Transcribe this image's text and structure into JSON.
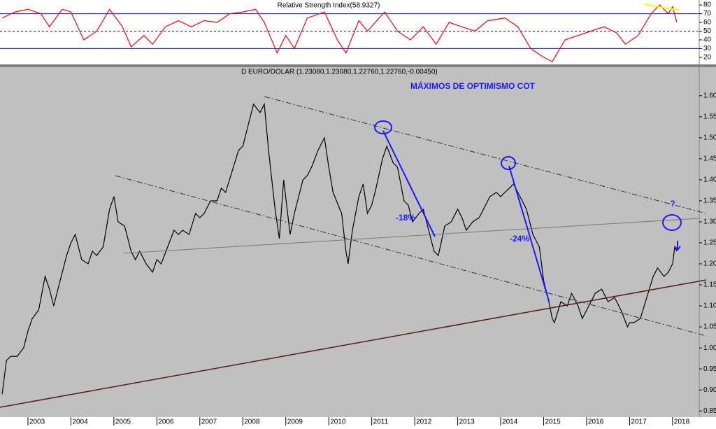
{
  "chart_data": [
    {
      "type": "line",
      "title": "Relative Strength Index(58.9327)",
      "xlim": [
        2002.35,
        2018.62
      ],
      "ylim": [
        12.7,
        85.7
      ],
      "yticks": [
        20,
        30,
        40,
        50,
        60,
        70,
        80
      ],
      "levels": [
        70,
        50,
        30
      ],
      "series": [
        {
          "name": "RSI",
          "color": "#ff0000",
          "x": [
            2002.4,
            2002.7,
            2003.0,
            2003.3,
            2003.5,
            2003.8,
            2004.0,
            2004.3,
            2004.6,
            2004.9,
            2005.2,
            2005.4,
            2005.7,
            2005.9,
            2006.2,
            2006.5,
            2006.8,
            2007.1,
            2007.4,
            2007.7,
            2008.0,
            2008.3,
            2008.5,
            2008.8,
            2009.0,
            2009.2,
            2009.5,
            2009.9,
            2010.2,
            2010.4,
            2010.7,
            2010.9,
            2011.3,
            2011.6,
            2011.9,
            2012.2,
            2012.5,
            2012.8,
            2013.1,
            2013.4,
            2013.7,
            2014.1,
            2014.4,
            2014.7,
            2015.0,
            2015.2,
            2015.5,
            2015.8,
            2016.1,
            2016.4,
            2016.7,
            2016.9,
            2017.2,
            2017.5,
            2017.7,
            2017.9,
            2018.0,
            2018.1
          ],
          "values": [
            65,
            72,
            75,
            70,
            55,
            75,
            72,
            40,
            50,
            75,
            55,
            32,
            45,
            35,
            55,
            62,
            55,
            62,
            60,
            70,
            72,
            75,
            60,
            25,
            45,
            30,
            65,
            72,
            40,
            25,
            62,
            50,
            72,
            50,
            40,
            55,
            35,
            60,
            55,
            50,
            62,
            65,
            55,
            30,
            20,
            15,
            40,
            45,
            50,
            55,
            48,
            35,
            45,
            70,
            80,
            70,
            78,
            60
          ]
        }
      ]
    },
    {
      "type": "line",
      "title": "D EURO/DOLAR (1.23080,1.23080,1.22760,1.22760,-0.00450)",
      "annotations": [
        "MÁXIMOS DE OPTIMISMO COT",
        "-18%",
        "-24%",
        "?"
      ],
      "xlim": [
        2002.35,
        2018.62
      ],
      "ylim": [
        0.837,
        1.668
      ],
      "xticks": [
        2003,
        2004,
        2005,
        2006,
        2007,
        2008,
        2009,
        2010,
        2011,
        2012,
        2013,
        2014,
        2015,
        2016,
        2017,
        2018
      ],
      "yticks": [
        {
          "value": 0.85,
          "label": "0.85"
        },
        {
          "value": 0.9,
          "label": "0.90"
        },
        {
          "value": 0.95,
          "label": "0.95"
        },
        {
          "value": 1.0,
          "label": "1.00"
        },
        {
          "value": 1.05,
          "label": "1.05"
        },
        {
          "value": 1.1,
          "label": "1.10"
        },
        {
          "value": 1.15,
          "label": "1.15"
        },
        {
          "value": 1.2,
          "label": "1.20"
        },
        {
          "value": 1.25,
          "label": "1.25"
        },
        {
          "value": 1.3,
          "label": "1.30"
        },
        {
          "value": 1.35,
          "label": "1.35"
        },
        {
          "value": 1.4,
          "label": "1.40"
        },
        {
          "value": 1.45,
          "label": "1.45"
        },
        {
          "value": 1.5,
          "label": "1.50"
        },
        {
          "value": 1.55,
          "label": "1.55"
        },
        {
          "value": 1.6,
          "label": "1.60"
        }
      ],
      "series": [
        {
          "name": "EURO/DOLAR",
          "color": "#000000",
          "x": [
            2002.4,
            2002.5,
            2002.6,
            2002.75,
            2002.9,
            2003.0,
            2003.1,
            2003.25,
            2003.4,
            2003.5,
            2003.6,
            2003.75,
            2003.9,
            2004.0,
            2004.1,
            2004.25,
            2004.4,
            2004.5,
            2004.6,
            2004.75,
            2004.9,
            2005.0,
            2005.1,
            2005.25,
            2005.4,
            2005.5,
            2005.6,
            2005.75,
            2005.9,
            2006.0,
            2006.1,
            2006.25,
            2006.4,
            2006.5,
            2006.6,
            2006.75,
            2006.9,
            2007.0,
            2007.1,
            2007.25,
            2007.4,
            2007.5,
            2007.6,
            2007.75,
            2007.9,
            2008.0,
            2008.1,
            2008.25,
            2008.4,
            2008.5,
            2008.6,
            2008.75,
            2008.85,
            2008.95,
            2009.1,
            2009.2,
            2009.4,
            2009.5,
            2009.6,
            2009.75,
            2009.9,
            2010.0,
            2010.1,
            2010.3,
            2010.4,
            2010.45,
            2010.55,
            2010.7,
            2010.8,
            2010.9,
            2011.0,
            2011.1,
            2011.25,
            2011.35,
            2011.5,
            2011.6,
            2011.75,
            2011.85,
            2011.95,
            2012.1,
            2012.2,
            2012.35,
            2012.45,
            2012.55,
            2012.7,
            2012.85,
            2013.0,
            2013.1,
            2013.2,
            2013.35,
            2013.5,
            2013.6,
            2013.75,
            2013.9,
            2014.0,
            2014.2,
            2014.3,
            2014.45,
            2014.6,
            2014.75,
            2014.9,
            2015.0,
            2015.1,
            2015.2,
            2015.25,
            2015.4,
            2015.55,
            2015.65,
            2015.8,
            2015.9,
            2016.0,
            2016.2,
            2016.35,
            2016.5,
            2016.65,
            2016.8,
            2016.95,
            2017.0,
            2017.1,
            2017.25,
            2017.4,
            2017.55,
            2017.65,
            2017.8,
            2017.9,
            2018.0,
            2018.05,
            2018.1
          ],
          "values": [
            0.89,
            0.97,
            0.98,
            0.98,
            1.0,
            1.04,
            1.07,
            1.09,
            1.17,
            1.14,
            1.1,
            1.16,
            1.22,
            1.25,
            1.27,
            1.21,
            1.2,
            1.23,
            1.22,
            1.24,
            1.33,
            1.36,
            1.3,
            1.29,
            1.23,
            1.21,
            1.23,
            1.2,
            1.18,
            1.21,
            1.2,
            1.24,
            1.28,
            1.27,
            1.28,
            1.27,
            1.32,
            1.31,
            1.32,
            1.35,
            1.35,
            1.38,
            1.37,
            1.42,
            1.47,
            1.48,
            1.52,
            1.58,
            1.56,
            1.58,
            1.47,
            1.33,
            1.26,
            1.4,
            1.27,
            1.32,
            1.4,
            1.41,
            1.43,
            1.47,
            1.5,
            1.43,
            1.37,
            1.32,
            1.23,
            1.2,
            1.28,
            1.36,
            1.39,
            1.32,
            1.34,
            1.38,
            1.45,
            1.48,
            1.44,
            1.43,
            1.35,
            1.34,
            1.3,
            1.32,
            1.33,
            1.27,
            1.23,
            1.22,
            1.29,
            1.3,
            1.33,
            1.31,
            1.28,
            1.3,
            1.31,
            1.33,
            1.36,
            1.37,
            1.36,
            1.38,
            1.39,
            1.36,
            1.33,
            1.27,
            1.24,
            1.16,
            1.12,
            1.07,
            1.06,
            1.11,
            1.1,
            1.13,
            1.1,
            1.07,
            1.09,
            1.13,
            1.14,
            1.11,
            1.12,
            1.09,
            1.05,
            1.06,
            1.06,
            1.07,
            1.12,
            1.17,
            1.19,
            1.17,
            1.18,
            1.2,
            1.24,
            1.23
          ]
        }
      ]
    }
  ]
}
